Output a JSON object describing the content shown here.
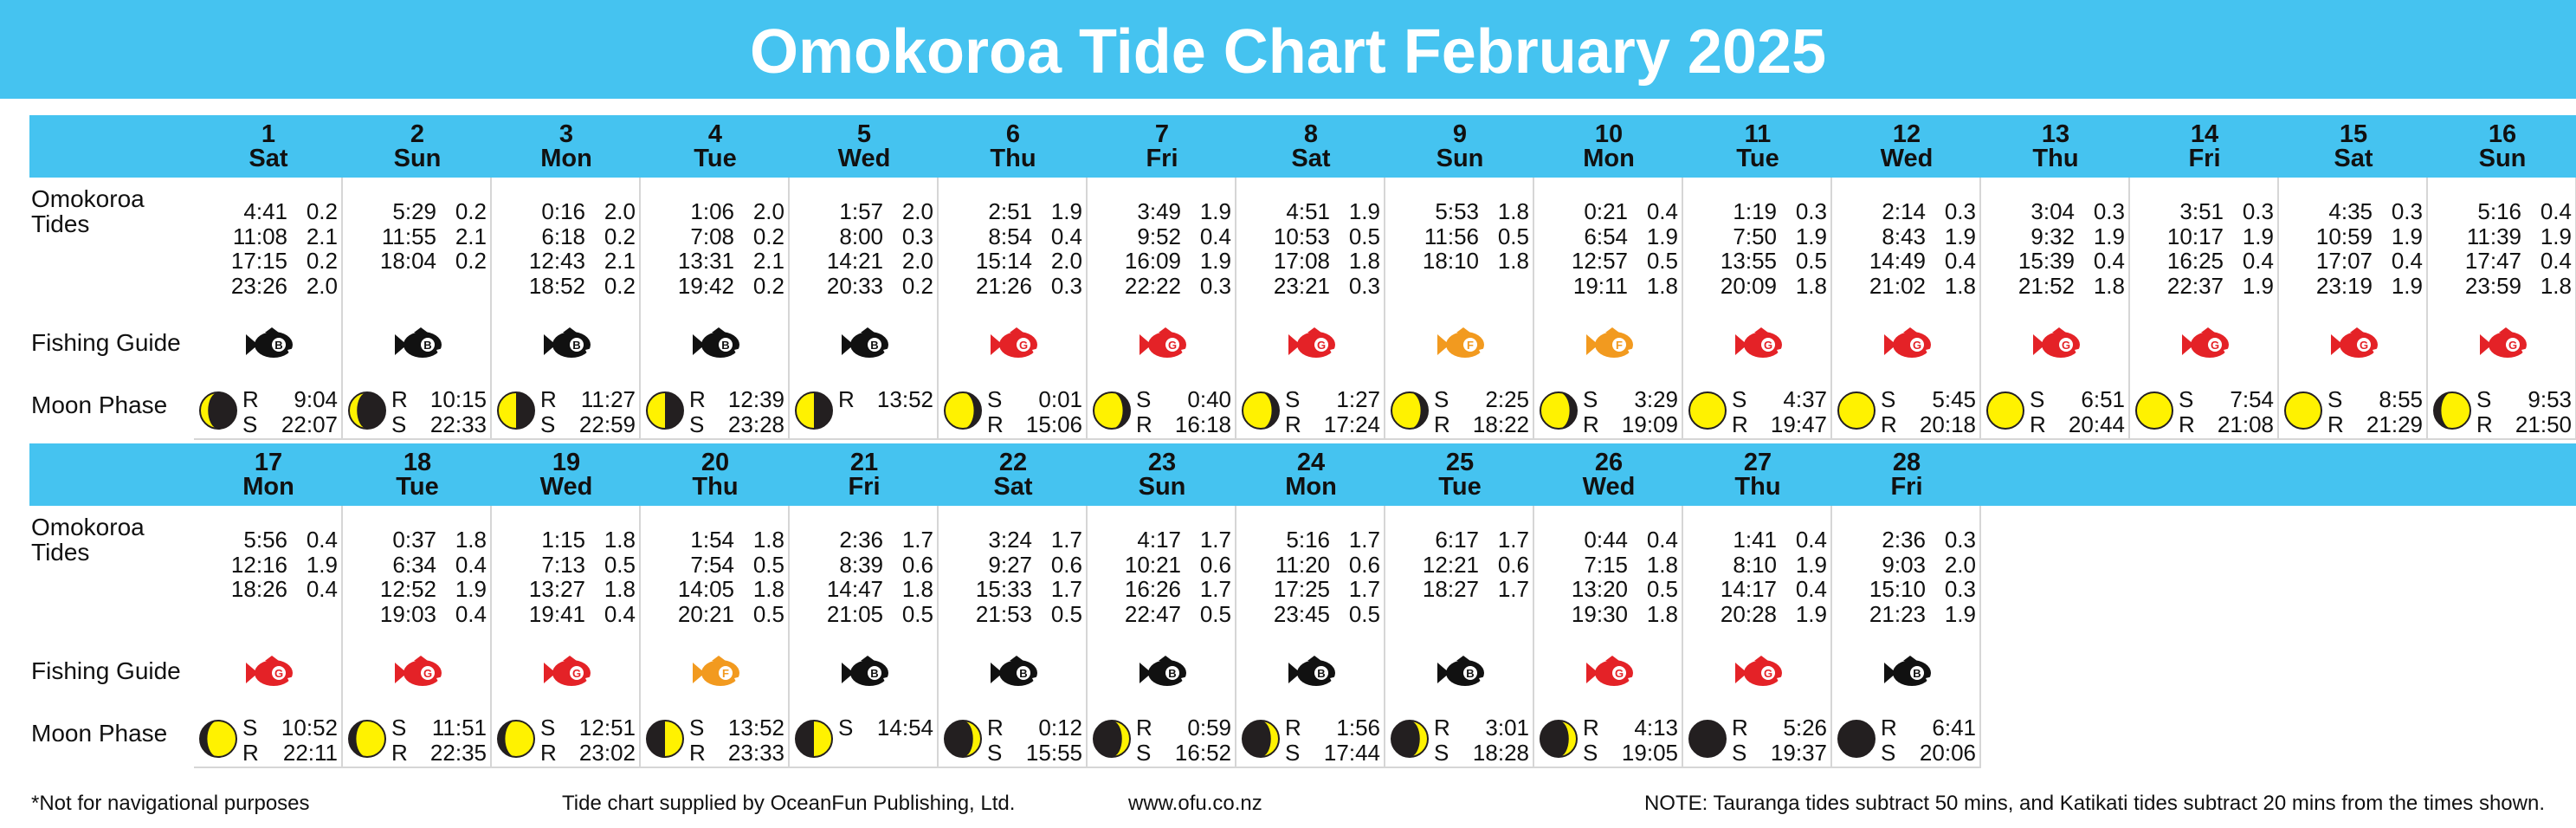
{
  "title": "Omokoroa Tide Chart February 2025",
  "labels": {
    "tides": "Omokoroa Tides",
    "fishing": "Fishing Guide",
    "moon": "Moon Phase"
  },
  "fish_colors": {
    "B": "#111111",
    "G": "#e42227",
    "F": "#f29a1f"
  },
  "days": [
    {
      "date": 1,
      "weekday": "Sat",
      "tides": [
        [
          "4:41",
          "0.2"
        ],
        [
          "11:08",
          "2.1"
        ],
        [
          "17:15",
          "0.2"
        ],
        [
          "23:26",
          "2.0"
        ]
      ],
      "fishing": "B",
      "moon": "waxing-crescent",
      "moon_times": [
        [
          "R",
          "9:04"
        ],
        [
          "S",
          "22:07"
        ]
      ]
    },
    {
      "date": 2,
      "weekday": "Sun",
      "tides": [
        [
          "5:29",
          "0.2"
        ],
        [
          "11:55",
          "2.1"
        ],
        [
          "18:04",
          "0.2"
        ]
      ],
      "fishing": "B",
      "moon": "waxing-crescent",
      "moon_times": [
        [
          "R",
          "10:15"
        ],
        [
          "S",
          "22:33"
        ]
      ]
    },
    {
      "date": 3,
      "weekday": "Mon",
      "tides": [
        [
          "0:16",
          "2.0"
        ],
        [
          "6:18",
          "0.2"
        ],
        [
          "12:43",
          "2.1"
        ],
        [
          "18:52",
          "0.2"
        ]
      ],
      "fishing": "B",
      "moon": "first-quarter",
      "moon_times": [
        [
          "R",
          "11:27"
        ],
        [
          "S",
          "22:59"
        ]
      ]
    },
    {
      "date": 4,
      "weekday": "Tue",
      "tides": [
        [
          "1:06",
          "2.0"
        ],
        [
          "7:08",
          "0.2"
        ],
        [
          "13:31",
          "2.1"
        ],
        [
          "19:42",
          "0.2"
        ]
      ],
      "fishing": "B",
      "moon": "first-quarter",
      "moon_times": [
        [
          "R",
          "12:39"
        ],
        [
          "S",
          "23:28"
        ]
      ]
    },
    {
      "date": 5,
      "weekday": "Wed",
      "tides": [
        [
          "1:57",
          "2.0"
        ],
        [
          "8:00",
          "0.3"
        ],
        [
          "14:21",
          "2.0"
        ],
        [
          "20:33",
          "0.2"
        ]
      ],
      "fishing": "B",
      "moon": "first-quarter",
      "moon_times": [
        [
          "R",
          "13:52"
        ]
      ]
    },
    {
      "date": 6,
      "weekday": "Thu",
      "tides": [
        [
          "2:51",
          "1.9"
        ],
        [
          "8:54",
          "0.4"
        ],
        [
          "15:14",
          "2.0"
        ],
        [
          "21:26",
          "0.3"
        ]
      ],
      "fishing": "G",
      "moon": "waxing-gibbous",
      "moon_times": [
        [
          "S",
          "0:01"
        ],
        [
          "R",
          "15:06"
        ]
      ]
    },
    {
      "date": 7,
      "weekday": "Fri",
      "tides": [
        [
          "3:49",
          "1.9"
        ],
        [
          "9:52",
          "0.4"
        ],
        [
          "16:09",
          "1.9"
        ],
        [
          "22:22",
          "0.3"
        ]
      ],
      "fishing": "G",
      "moon": "waxing-gibbous",
      "moon_times": [
        [
          "S",
          "0:40"
        ],
        [
          "R",
          "16:18"
        ]
      ]
    },
    {
      "date": 8,
      "weekday": "Sat",
      "tides": [
        [
          "4:51",
          "1.9"
        ],
        [
          "10:53",
          "0.5"
        ],
        [
          "17:08",
          "1.8"
        ],
        [
          "23:21",
          "0.3"
        ]
      ],
      "fishing": "G",
      "moon": "waxing-gibbous",
      "moon_times": [
        [
          "S",
          "1:27"
        ],
        [
          "R",
          "17:24"
        ]
      ]
    },
    {
      "date": 9,
      "weekday": "Sun",
      "tides": [
        [
          "5:53",
          "1.8"
        ],
        [
          "11:56",
          "0.5"
        ],
        [
          "18:10",
          "1.8"
        ]
      ],
      "fishing": "F",
      "moon": "waxing-gibbous",
      "moon_times": [
        [
          "S",
          "2:25"
        ],
        [
          "R",
          "18:22"
        ]
      ]
    },
    {
      "date": 10,
      "weekday": "Mon",
      "tides": [
        [
          "0:21",
          "0.4"
        ],
        [
          "6:54",
          "1.9"
        ],
        [
          "12:57",
          "0.5"
        ],
        [
          "19:11",
          "1.8"
        ]
      ],
      "fishing": "F",
      "moon": "waxing-gibbous",
      "moon_times": [
        [
          "S",
          "3:29"
        ],
        [
          "R",
          "19:09"
        ]
      ]
    },
    {
      "date": 11,
      "weekday": "Tue",
      "tides": [
        [
          "1:19",
          "0.3"
        ],
        [
          "7:50",
          "1.9"
        ],
        [
          "13:55",
          "0.5"
        ],
        [
          "20:09",
          "1.8"
        ]
      ],
      "fishing": "G",
      "moon": "full",
      "moon_times": [
        [
          "S",
          "4:37"
        ],
        [
          "R",
          "19:47"
        ]
      ]
    },
    {
      "date": 12,
      "weekday": "Wed",
      "tides": [
        [
          "2:14",
          "0.3"
        ],
        [
          "8:43",
          "1.9"
        ],
        [
          "14:49",
          "0.4"
        ],
        [
          "21:02",
          "1.8"
        ]
      ],
      "fishing": "G",
      "moon": "full",
      "moon_times": [
        [
          "S",
          "5:45"
        ],
        [
          "R",
          "20:18"
        ]
      ]
    },
    {
      "date": 13,
      "weekday": "Thu",
      "tides": [
        [
          "3:04",
          "0.3"
        ],
        [
          "9:32",
          "1.9"
        ],
        [
          "15:39",
          "0.4"
        ],
        [
          "21:52",
          "1.8"
        ]
      ],
      "fishing": "G",
      "moon": "full",
      "moon_times": [
        [
          "S",
          "6:51"
        ],
        [
          "R",
          "20:44"
        ]
      ]
    },
    {
      "date": 14,
      "weekday": "Fri",
      "tides": [
        [
          "3:51",
          "0.3"
        ],
        [
          "10:17",
          "1.9"
        ],
        [
          "16:25",
          "0.4"
        ],
        [
          "22:37",
          "1.9"
        ]
      ],
      "fishing": "G",
      "moon": "full",
      "moon_times": [
        [
          "S",
          "7:54"
        ],
        [
          "R",
          "21:08"
        ]
      ]
    },
    {
      "date": 15,
      "weekday": "Sat",
      "tides": [
        [
          "4:35",
          "0.3"
        ],
        [
          "10:59",
          "1.9"
        ],
        [
          "17:07",
          "0.4"
        ],
        [
          "23:19",
          "1.9"
        ]
      ],
      "fishing": "G",
      "moon": "full",
      "moon_times": [
        [
          "S",
          "8:55"
        ],
        [
          "R",
          "21:29"
        ]
      ]
    },
    {
      "date": 16,
      "weekday": "Sun",
      "tides": [
        [
          "5:16",
          "0.4"
        ],
        [
          "11:39",
          "1.9"
        ],
        [
          "17:47",
          "0.4"
        ],
        [
          "23:59",
          "1.8"
        ]
      ],
      "fishing": "G",
      "moon": "waning-gibbous",
      "moon_times": [
        [
          "S",
          "9:53"
        ],
        [
          "R",
          "21:50"
        ]
      ]
    },
    {
      "date": 17,
      "weekday": "Mon",
      "tides": [
        [
          "5:56",
          "0.4"
        ],
        [
          "12:16",
          "1.9"
        ],
        [
          "18:26",
          "0.4"
        ]
      ],
      "fishing": "G",
      "moon": "waning-gibbous",
      "moon_times": [
        [
          "S",
          "10:52"
        ],
        [
          "R",
          "22:11"
        ]
      ]
    },
    {
      "date": 18,
      "weekday": "Tue",
      "tides": [
        [
          "0:37",
          "1.8"
        ],
        [
          "6:34",
          "0.4"
        ],
        [
          "12:52",
          "1.9"
        ],
        [
          "19:03",
          "0.4"
        ]
      ],
      "fishing": "G",
      "moon": "waning-gibbous",
      "moon_times": [
        [
          "S",
          "11:51"
        ],
        [
          "R",
          "22:35"
        ]
      ]
    },
    {
      "date": 19,
      "weekday": "Wed",
      "tides": [
        [
          "1:15",
          "1.8"
        ],
        [
          "7:13",
          "0.5"
        ],
        [
          "13:27",
          "1.8"
        ],
        [
          "19:41",
          "0.4"
        ]
      ],
      "fishing": "G",
      "moon": "waning-gibbous",
      "moon_times": [
        [
          "S",
          "12:51"
        ],
        [
          "R",
          "23:02"
        ]
      ]
    },
    {
      "date": 20,
      "weekday": "Thu",
      "tides": [
        [
          "1:54",
          "1.8"
        ],
        [
          "7:54",
          "0.5"
        ],
        [
          "14:05",
          "1.8"
        ],
        [
          "20:21",
          "0.5"
        ]
      ],
      "fishing": "F",
      "moon": "last-quarter",
      "moon_times": [
        [
          "S",
          "13:52"
        ],
        [
          "R",
          "23:33"
        ]
      ]
    },
    {
      "date": 21,
      "weekday": "Fri",
      "tides": [
        [
          "2:36",
          "1.7"
        ],
        [
          "8:39",
          "0.6"
        ],
        [
          "14:47",
          "1.8"
        ],
        [
          "21:05",
          "0.5"
        ]
      ],
      "fishing": "B",
      "moon": "last-quarter",
      "moon_times": [
        [
          "S",
          "14:54"
        ]
      ]
    },
    {
      "date": 22,
      "weekday": "Sat",
      "tides": [
        [
          "3:24",
          "1.7"
        ],
        [
          "9:27",
          "0.6"
        ],
        [
          "15:33",
          "1.7"
        ],
        [
          "21:53",
          "0.5"
        ]
      ],
      "fishing": "B",
      "moon": "waning-crescent",
      "moon_times": [
        [
          "R",
          "0:12"
        ],
        [
          "S",
          "15:55"
        ]
      ]
    },
    {
      "date": 23,
      "weekday": "Sun",
      "tides": [
        [
          "4:17",
          "1.7"
        ],
        [
          "10:21",
          "0.6"
        ],
        [
          "16:26",
          "1.7"
        ],
        [
          "22:47",
          "0.5"
        ]
      ],
      "fishing": "B",
      "moon": "waning-crescent",
      "moon_times": [
        [
          "R",
          "0:59"
        ],
        [
          "S",
          "16:52"
        ]
      ]
    },
    {
      "date": 24,
      "weekday": "Mon",
      "tides": [
        [
          "5:16",
          "1.7"
        ],
        [
          "11:20",
          "0.6"
        ],
        [
          "17:25",
          "1.7"
        ],
        [
          "23:45",
          "0.5"
        ]
      ],
      "fishing": "B",
      "moon": "waning-crescent",
      "moon_times": [
        [
          "R",
          "1:56"
        ],
        [
          "S",
          "17:44"
        ]
      ]
    },
    {
      "date": 25,
      "weekday": "Tue",
      "tides": [
        [
          "6:17",
          "1.7"
        ],
        [
          "12:21",
          "0.6"
        ],
        [
          "18:27",
          "1.7"
        ]
      ],
      "fishing": "B",
      "moon": "waning-crescent",
      "moon_times": [
        [
          "R",
          "3:01"
        ],
        [
          "S",
          "18:28"
        ]
      ]
    },
    {
      "date": 26,
      "weekday": "Wed",
      "tides": [
        [
          "0:44",
          "0.4"
        ],
        [
          "7:15",
          "1.8"
        ],
        [
          "13:20",
          "0.5"
        ],
        [
          "19:30",
          "1.8"
        ]
      ],
      "fishing": "G",
      "moon": "waning-crescent",
      "moon_times": [
        [
          "R",
          "4:13"
        ],
        [
          "S",
          "19:05"
        ]
      ]
    },
    {
      "date": 27,
      "weekday": "Thu",
      "tides": [
        [
          "1:41",
          "0.4"
        ],
        [
          "8:10",
          "1.9"
        ],
        [
          "14:17",
          "0.4"
        ],
        [
          "20:28",
          "1.9"
        ]
      ],
      "fishing": "G",
      "moon": "new",
      "moon_times": [
        [
          "R",
          "5:26"
        ],
        [
          "S",
          "19:37"
        ]
      ]
    },
    {
      "date": 28,
      "weekday": "Fri",
      "tides": [
        [
          "2:36",
          "0.3"
        ],
        [
          "9:03",
          "2.0"
        ],
        [
          "15:10",
          "0.3"
        ],
        [
          "21:23",
          "1.9"
        ]
      ],
      "fishing": "B",
      "moon": "new",
      "moon_times": [
        [
          "R",
          "6:41"
        ],
        [
          "S",
          "20:06"
        ]
      ]
    }
  ],
  "footer": {
    "disclaimer": "*Not for navigational purposes",
    "supplier": "Tide chart supplied by OceanFun Publishing, Ltd.",
    "website": "www.ofu.co.nz",
    "note": "NOTE: Tauranga tides subtract 50 mins, and Katikati tides subtract 20 mins from the times shown."
  }
}
